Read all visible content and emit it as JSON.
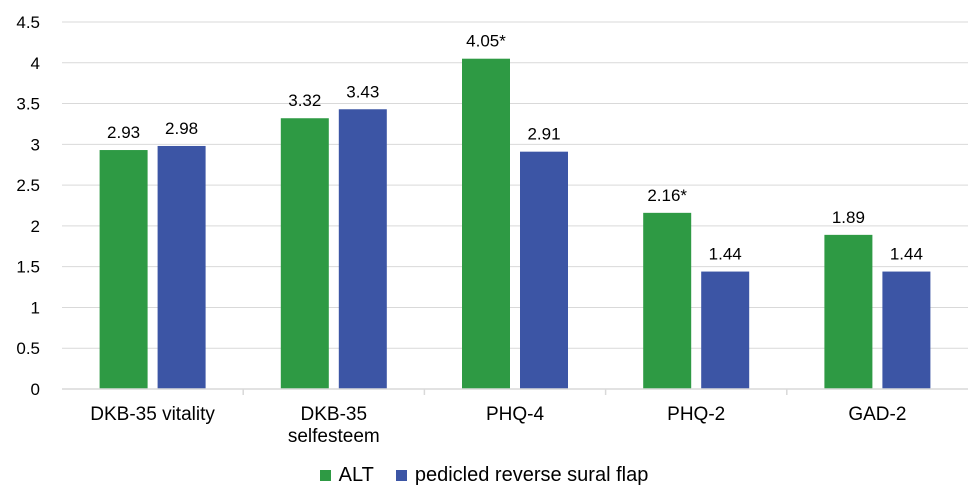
{
  "chart_data": {
    "type": "bar",
    "categories": [
      [
        "DKB-35 vitality"
      ],
      [
        "DKB-35",
        "selfesteem"
      ],
      [
        "PHQ-4"
      ],
      [
        "PHQ-2"
      ],
      [
        "GAD-2"
      ]
    ],
    "series": [
      {
        "name": "ALT",
        "color": "#2e9a44",
        "values": [
          2.93,
          3.32,
          4.05,
          2.16,
          1.89
        ],
        "labels": [
          "2.93",
          "3.32",
          "4.05*",
          "2.16*",
          "1.89"
        ]
      },
      {
        "name": "pedicled reverse sural flap",
        "color": "#3c55a5",
        "values": [
          2.98,
          3.43,
          2.91,
          1.44,
          1.44
        ],
        "labels": [
          "2.98",
          "3.43",
          "2.91",
          "1.44",
          "1.44"
        ]
      }
    ],
    "ylim": [
      0,
      4.5
    ],
    "yticks": [
      "0",
      "0.5",
      "1",
      "1.5",
      "2",
      "2.5",
      "3",
      "3.5",
      "4",
      "4.5"
    ],
    "grid": true,
    "legend_position": "bottom"
  }
}
